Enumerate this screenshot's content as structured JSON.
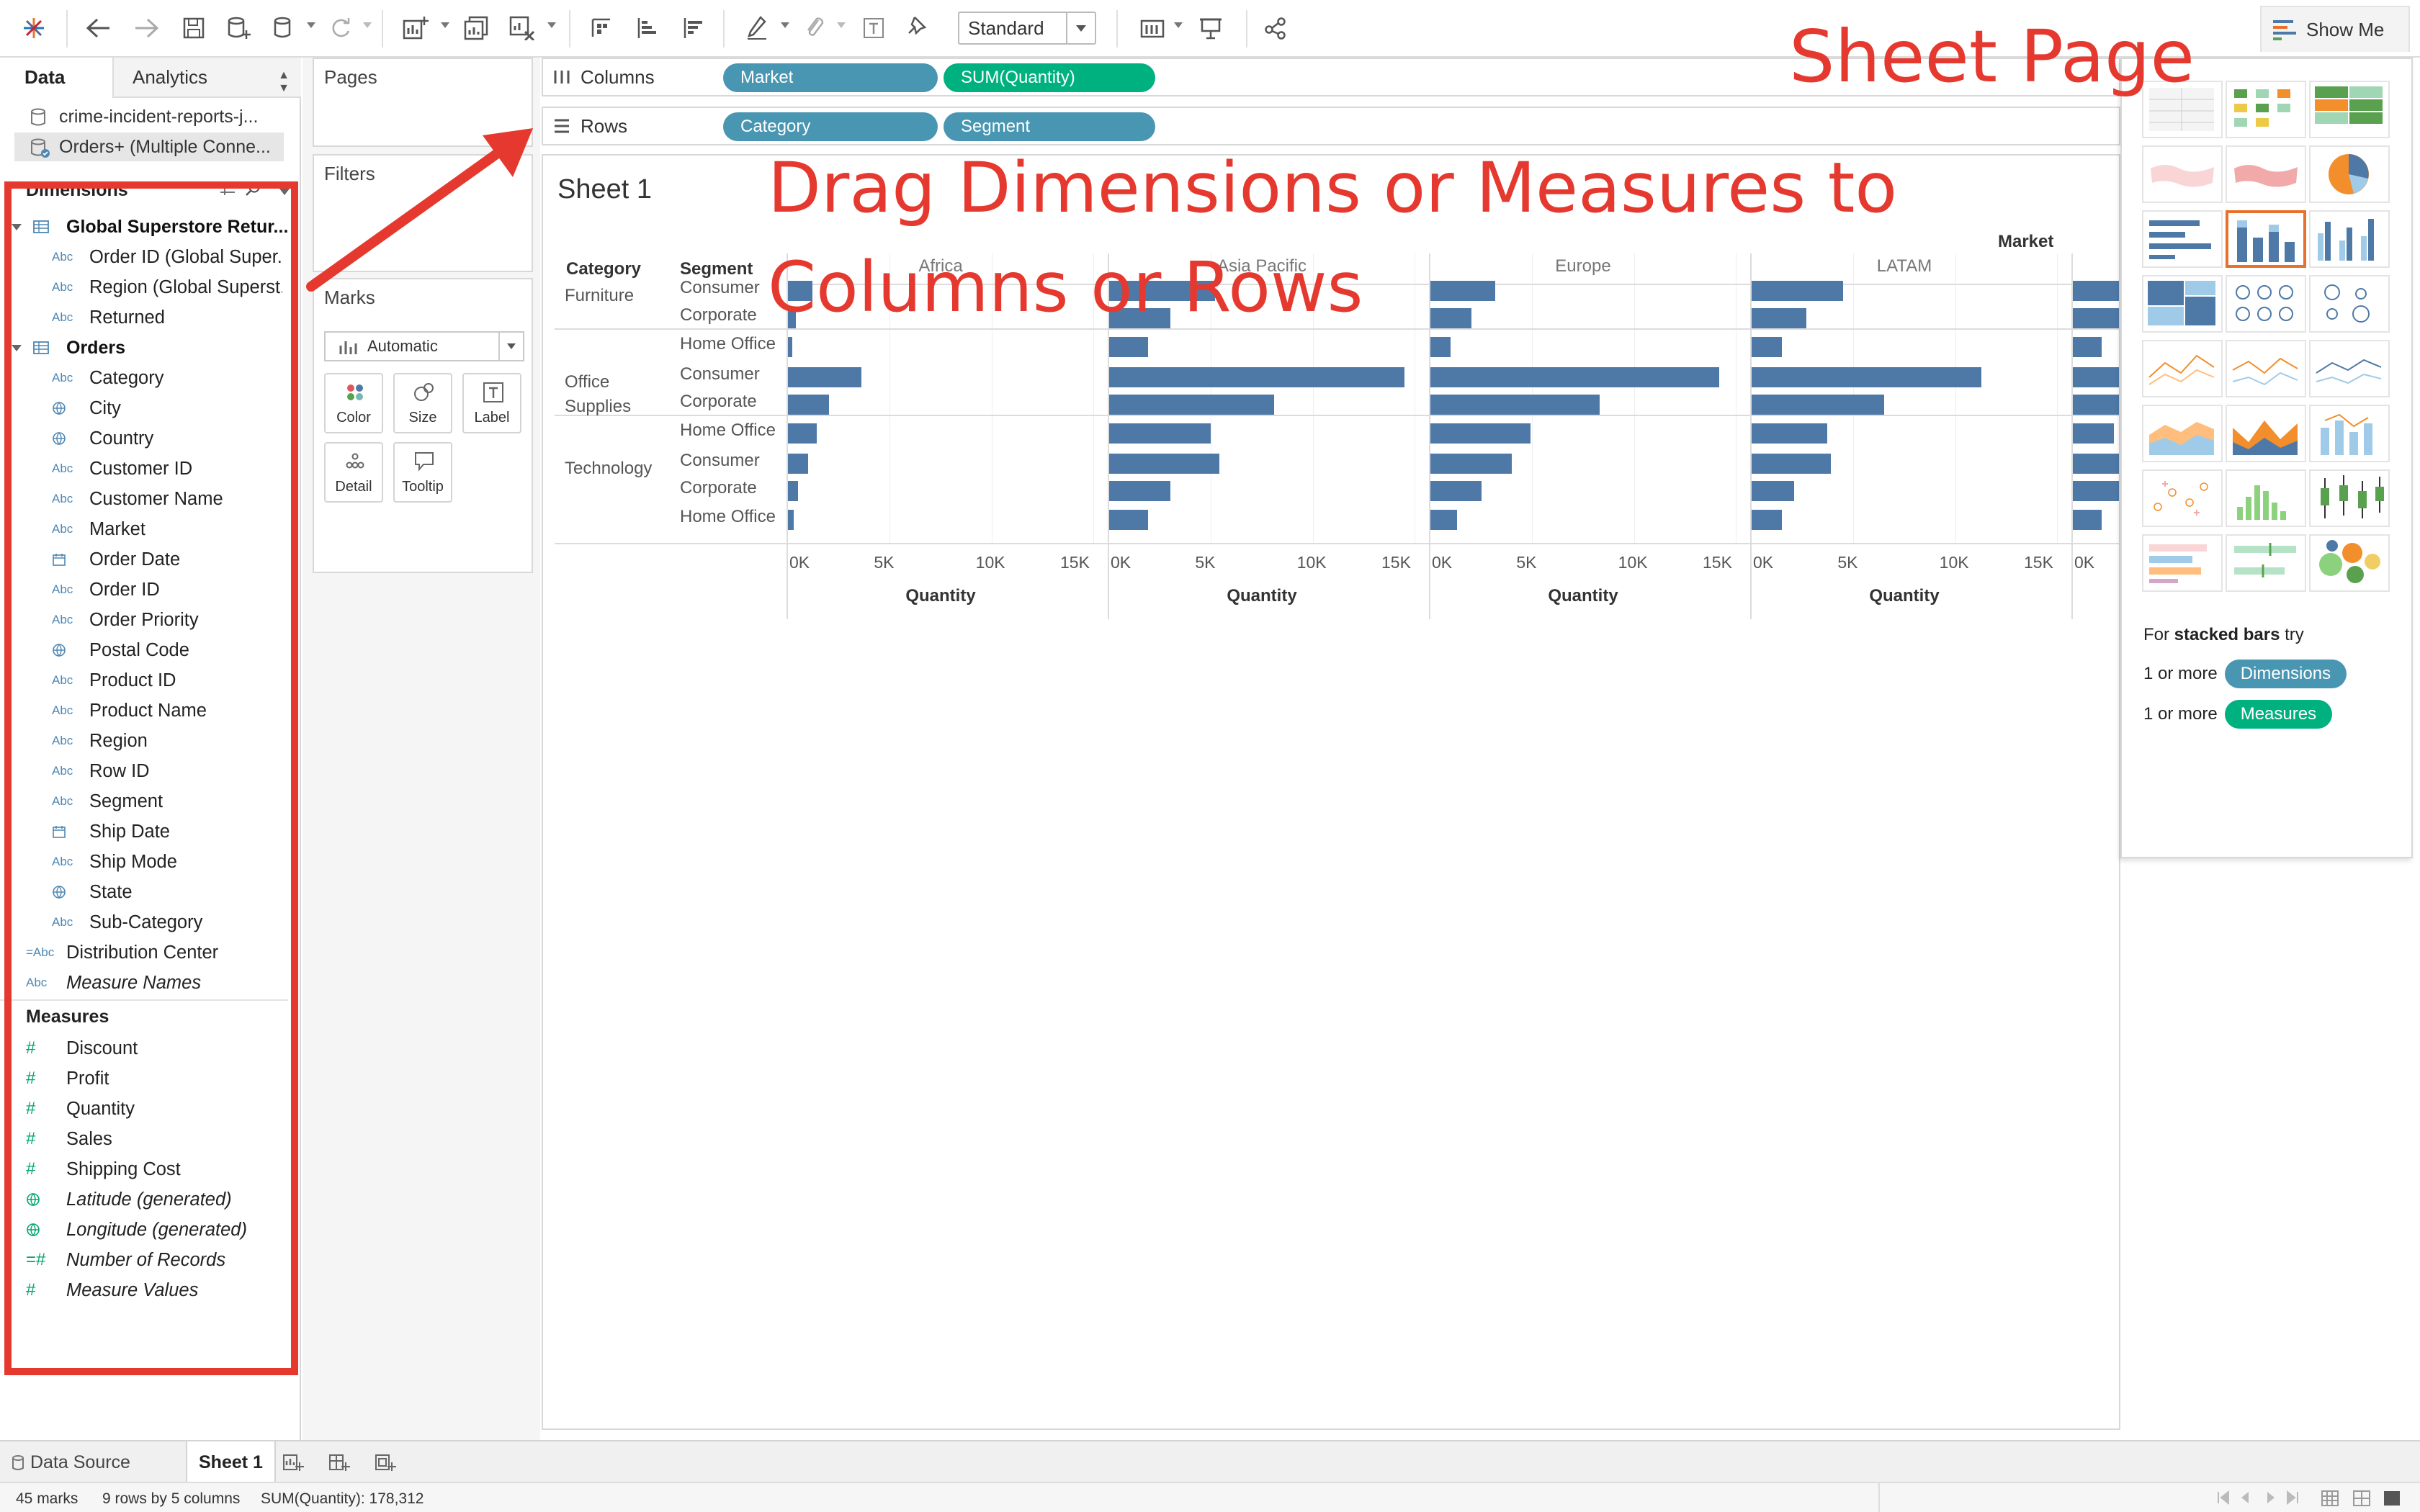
{
  "toolbar": {
    "view_size": "Standard",
    "show_me": "Show Me"
  },
  "data_pane": {
    "tab_data": "Data",
    "tab_analytics": "Analytics",
    "datasources": [
      "crime-incident-reports-j...",
      "Orders+ (Multiple Conne..."
    ],
    "dimensions_header": "Dimensions",
    "groups": [
      {
        "name": "Global Superstore Retur...",
        "fields": [
          {
            "type": "Abc",
            "name": "Order ID (Global Super..."
          },
          {
            "type": "Abc",
            "name": "Region (Global Superst..."
          },
          {
            "type": "Abc",
            "name": "Returned"
          }
        ]
      },
      {
        "name": "Orders",
        "fields": [
          {
            "type": "Abc",
            "name": "Category"
          },
          {
            "type": "geo",
            "name": "City"
          },
          {
            "type": "geo",
            "name": "Country"
          },
          {
            "type": "Abc",
            "name": "Customer ID"
          },
          {
            "type": "Abc",
            "name": "Customer Name"
          },
          {
            "type": "Abc",
            "name": "Market"
          },
          {
            "type": "date",
            "name": "Order Date"
          },
          {
            "type": "Abc",
            "name": "Order ID"
          },
          {
            "type": "Abc",
            "name": "Order Priority"
          },
          {
            "type": "geo",
            "name": "Postal Code"
          },
          {
            "type": "Abc",
            "name": "Product ID"
          },
          {
            "type": "Abc",
            "name": "Product Name"
          },
          {
            "type": "Abc",
            "name": "Region"
          },
          {
            "type": "Abc",
            "name": "Row ID"
          },
          {
            "type": "Abc",
            "name": "Segment"
          },
          {
            "type": "date",
            "name": "Ship Date"
          },
          {
            "type": "Abc",
            "name": "Ship Mode"
          },
          {
            "type": "geo",
            "name": "State"
          },
          {
            "type": "Abc",
            "name": "Sub-Category"
          }
        ]
      }
    ],
    "loose_dimensions": [
      {
        "type": "=Abc",
        "name": "Distribution Center",
        "italic": false
      },
      {
        "type": "Abc",
        "name": "Measure Names",
        "italic": true
      }
    ],
    "measures_header": "Measures",
    "measures": [
      {
        "type": "#",
        "name": "Discount",
        "italic": false
      },
      {
        "type": "#",
        "name": "Profit",
        "italic": false
      },
      {
        "type": "#",
        "name": "Quantity",
        "italic": false
      },
      {
        "type": "#",
        "name": "Sales",
        "italic": false
      },
      {
        "type": "#",
        "name": "Shipping Cost",
        "italic": false
      },
      {
        "type": "geo",
        "name": "Latitude (generated)",
        "italic": true
      },
      {
        "type": "geo",
        "name": "Longitude (generated)",
        "italic": true
      },
      {
        "type": "=#",
        "name": "Number of Records",
        "italic": true
      },
      {
        "type": "#",
        "name": "Measure Values",
        "italic": true
      }
    ]
  },
  "cards": {
    "pages": "Pages",
    "filters": "Filters",
    "marks": "Marks",
    "mark_type": "Automatic",
    "mark_buttons": [
      "Color",
      "Size",
      "Label",
      "Detail",
      "Tooltip"
    ]
  },
  "shelves": {
    "columns_label": "Columns",
    "rows_label": "Rows",
    "columns_pills": [
      "Market",
      "SUM(Quantity)"
    ],
    "rows_pills": [
      "Category",
      "Segment"
    ]
  },
  "sheet": {
    "title": "Sheet 1",
    "column_header": "Market",
    "row_headers": [
      "Category",
      "Segment"
    ]
  },
  "chart_data": {
    "type": "bar",
    "orientation": "horizontal",
    "panels": [
      "Africa",
      "Asia Pacific",
      "Europe",
      "LATAM"
    ],
    "categories": [
      "Furniture",
      "Office Supplies",
      "Technology"
    ],
    "segments": [
      "Consumer",
      "Corporate",
      "Home Office"
    ],
    "category_labels": [
      "Furniture",
      "Office\nSupplies",
      "Technology"
    ],
    "values": {
      "Africa": [
        [
          1200,
          400,
          200
        ],
        [
          3600,
          2000,
          1400
        ],
        [
          1000,
          500,
          300
        ]
      ],
      "Asia Pacific": [
        [
          5200,
          3000,
          1900
        ],
        [
          14500,
          8100,
          5000
        ],
        [
          5400,
          3000,
          1900
        ]
      ],
      "Europe": [
        [
          3200,
          2000,
          1000
        ],
        [
          14200,
          8300,
          4900
        ],
        [
          4000,
          2500,
          1300
        ]
      ],
      "LATAM": [
        [
          4500,
          2700,
          1500
        ],
        [
          11300,
          6500,
          3700
        ],
        [
          3900,
          2100,
          1500
        ]
      ],
      "partial": [
        [
          2600,
          2400,
          1400
        ],
        [
          5600,
          3000,
          2000
        ],
        [
          2600,
          2300,
          1400
        ]
      ]
    },
    "xlim": [
      0,
      15000
    ],
    "ticks": [
      "0K",
      "5K",
      "10K",
      "15K"
    ],
    "xlabel": "Quantity",
    "color": "#4e79a7"
  },
  "show_me": {
    "hint_prefix": "For ",
    "hint_bold": "stacked bars",
    "hint_suffix": " try",
    "req1_prefix": "1 or more",
    "req1_pill": "Dimensions",
    "req2_prefix": "1 or more",
    "req2_pill": "Measures"
  },
  "bottom_tabs": {
    "data_source": "Data Source",
    "sheet": "Sheet 1"
  },
  "status": {
    "marks": "45 marks",
    "dims": "9 rows by 5 columns",
    "sum": "SUM(Quantity): 178,312"
  },
  "annotations": {
    "sheet_page": "Sheet Page",
    "drag_line1": "Drag Dimensions or Measures to",
    "drag_line2": "Columns or Rows"
  },
  "colors": {
    "dimension_pill": "#4996b2",
    "measure_pill": "#00b180",
    "annotation": "#e5392f",
    "bar": "#4e79a7"
  }
}
